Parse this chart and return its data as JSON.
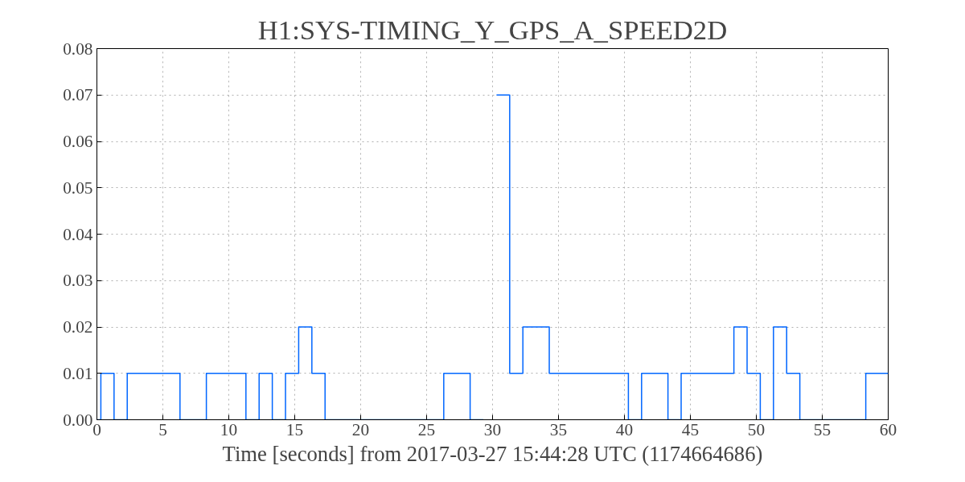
{
  "chart_data": {
    "type": "step",
    "title": "H1:SYS-TIMING_Y_GPS_A_SPEED2D",
    "xlabel": "Time [seconds] from 2017-03-27 15:44:28 UTC (1174664686)",
    "x": [
      0,
      0.3,
      1.3,
      2.3,
      6.3,
      8.3,
      11.3,
      12.3,
      13.3,
      14.3,
      15.3,
      16.3,
      17.3,
      26.3,
      28.3,
      29.3,
      30.3,
      31.3,
      32.3,
      34.3,
      40.3,
      41.3,
      43.3,
      44.3,
      48.3,
      49.3,
      50.3,
      51.3,
      52.3,
      53.3,
      58.3,
      60
    ],
    "series": [
      {
        "color": "#0066ff",
        "values": [
          0,
          0.01,
          0,
          0.01,
          0,
          0.01,
          0,
          0.01,
          0,
          0.01,
          0.02,
          0.01,
          0,
          0.01,
          0,
          null,
          0.07,
          0.01,
          0.02,
          0.01,
          0,
          0.01,
          0,
          0.01,
          0.02,
          0.01,
          0,
          0.02,
          0.01,
          0,
          0.01,
          0.01
        ]
      }
    ],
    "xlim": [
      0,
      60
    ],
    "xticks": [
      0,
      5,
      10,
      15,
      20,
      25,
      30,
      35,
      40,
      45,
      50,
      55,
      60
    ],
    "ylim": [
      0,
      0.08
    ],
    "yticks": [
      {
        "value": 0,
        "label": "0.00"
      },
      {
        "value": 0.01,
        "label": "0.01"
      },
      {
        "value": 0.02,
        "label": "0.02"
      },
      {
        "value": 0.03,
        "label": "0.03"
      },
      {
        "value": 0.04,
        "label": "0.04"
      },
      {
        "value": 0.05,
        "label": "0.05"
      },
      {
        "value": 0.06,
        "label": "0.06"
      },
      {
        "value": 0.07,
        "label": "0.07"
      },
      {
        "value": 0.08,
        "label": "0.08"
      }
    ],
    "grid": true,
    "line_style": "solid"
  }
}
